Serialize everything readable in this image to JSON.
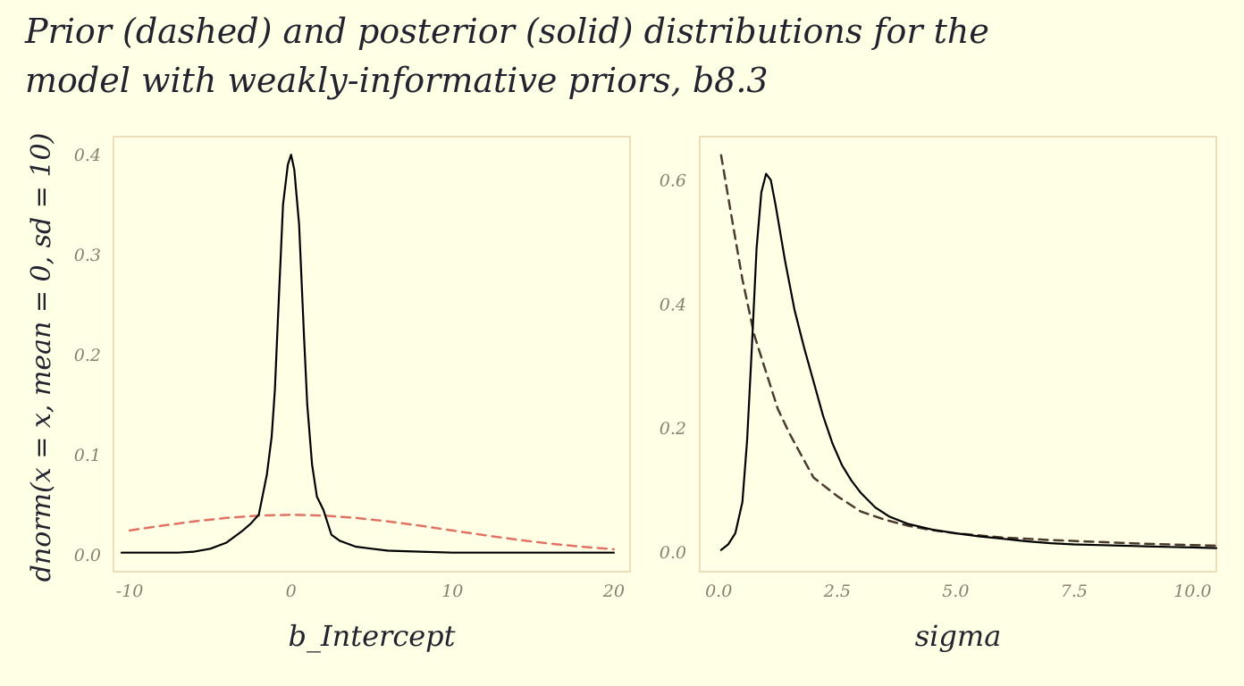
{
  "title_lines": [
    "Prior (dashed) and posterior (solid) distributions for the",
    "model with weakly-informative priors, b8.3"
  ],
  "ylabel": "dnorm(x = x, mean = 0, sd = 10)",
  "colors": {
    "background": "#FFFFE5",
    "panel_border": "#EEDDBB",
    "posterior": "#000000",
    "prior_left": "#E07366",
    "prior_right": "#4A3A30",
    "tick_text": "#8a8070",
    "title_text": "#23232f"
  },
  "chart_data": [
    {
      "type": "line",
      "xlabel": "b_Intercept",
      "ylabel": "dnorm(x = x, mean = 0, sd = 10)",
      "xlim": [
        -11,
        21
      ],
      "ylim": [
        -0.017,
        0.418
      ],
      "xticks": [
        -10,
        0,
        10,
        20
      ],
      "xtick_labels": [
        "-10",
        "0",
        "10",
        "20"
      ],
      "yticks": [
        0.0,
        0.1,
        0.2,
        0.3,
        0.4
      ],
      "ytick_labels": [
        "0.0",
        "0.1",
        "0.2",
        "0.3",
        "0.4"
      ],
      "grid": false,
      "series": [
        {
          "role": "posterior",
          "style": "solid",
          "color": "#000000",
          "x": [
            -10.5,
            -9,
            -8,
            -7,
            -6,
            -5,
            -4,
            -3,
            -2.5,
            -2,
            -1.5,
            -1.2,
            -1,
            -0.8,
            -0.5,
            -0.2,
            0,
            0.2,
            0.5,
            0.8,
            1,
            1.3,
            1.6,
            2,
            2.5,
            3,
            4,
            5,
            6,
            8,
            10,
            12,
            15,
            18,
            20
          ],
          "y": [
            0.002,
            0.002,
            0.002,
            0.002,
            0.003,
            0.006,
            0.012,
            0.024,
            0.031,
            0.04,
            0.08,
            0.118,
            0.165,
            0.24,
            0.35,
            0.39,
            0.4,
            0.385,
            0.33,
            0.22,
            0.15,
            0.09,
            0.058,
            0.045,
            0.02,
            0.014,
            0.008,
            0.006,
            0.004,
            0.003,
            0.002,
            0.002,
            0.002,
            0.002,
            0.002
          ]
        },
        {
          "role": "prior",
          "style": "dashed",
          "color": "#E07366",
          "x": [
            -10,
            -8,
            -6,
            -4,
            -2,
            0,
            2,
            4,
            6,
            8,
            10,
            12,
            14,
            16,
            18,
            20
          ],
          "y": [
            0.0242,
            0.029,
            0.0333,
            0.0368,
            0.0391,
            0.0399,
            0.0391,
            0.0368,
            0.0333,
            0.029,
            0.0242,
            0.0194,
            0.015,
            0.0111,
            0.0079,
            0.0054
          ]
        }
      ]
    },
    {
      "type": "line",
      "xlabel": "sigma",
      "ylabel": "",
      "xlim": [
        -0.4,
        10.5
      ],
      "ylim": [
        -0.032,
        0.67
      ],
      "xticks": [
        0.0,
        2.5,
        5.0,
        7.5,
        10.0
      ],
      "xtick_labels": [
        "0.0",
        "2.5",
        "5.0",
        "7.5",
        "10.0"
      ],
      "yticks": [
        0.0,
        0.2,
        0.4,
        0.6
      ],
      "ytick_labels": [
        "0.0",
        "0.2",
        "0.4",
        "0.6"
      ],
      "grid": false,
      "series": [
        {
          "role": "posterior",
          "style": "solid",
          "color": "#000000",
          "x": [
            0.05,
            0.2,
            0.35,
            0.5,
            0.6,
            0.7,
            0.8,
            0.9,
            1.0,
            1.1,
            1.2,
            1.4,
            1.6,
            1.8,
            2.0,
            2.2,
            2.4,
            2.6,
            2.8,
            3.0,
            3.3,
            3.6,
            4.0,
            4.5,
            5.0,
            5.5,
            6.0,
            6.5,
            7.0,
            7.5,
            8.0,
            8.5,
            9.0,
            9.5,
            10.0,
            10.5
          ],
          "y": [
            0.003,
            0.012,
            0.03,
            0.08,
            0.18,
            0.33,
            0.49,
            0.58,
            0.61,
            0.6,
            0.56,
            0.47,
            0.39,
            0.33,
            0.275,
            0.22,
            0.175,
            0.14,
            0.115,
            0.095,
            0.072,
            0.057,
            0.045,
            0.036,
            0.03,
            0.025,
            0.021,
            0.017,
            0.014,
            0.012,
            0.011,
            0.01,
            0.009,
            0.008,
            0.007,
            0.006
          ]
        },
        {
          "role": "prior",
          "style": "dashed",
          "color": "#4A3A30",
          "x": [
            0.05,
            0.25,
            0.5,
            0.75,
            1.0,
            1.25,
            1.5,
            1.75,
            2.0,
            2.5,
            3.0,
            3.5,
            4.0,
            4.5,
            5.0,
            6.0,
            7.0,
            8.0,
            9.0,
            10.0,
            10.5
          ],
          "y": [
            0.64,
            0.55,
            0.44,
            0.35,
            0.29,
            0.23,
            0.19,
            0.155,
            0.12,
            0.09,
            0.065,
            0.052,
            0.042,
            0.035,
            0.03,
            0.023,
            0.019,
            0.016,
            0.013,
            0.011,
            0.01
          ]
        }
      ]
    }
  ]
}
